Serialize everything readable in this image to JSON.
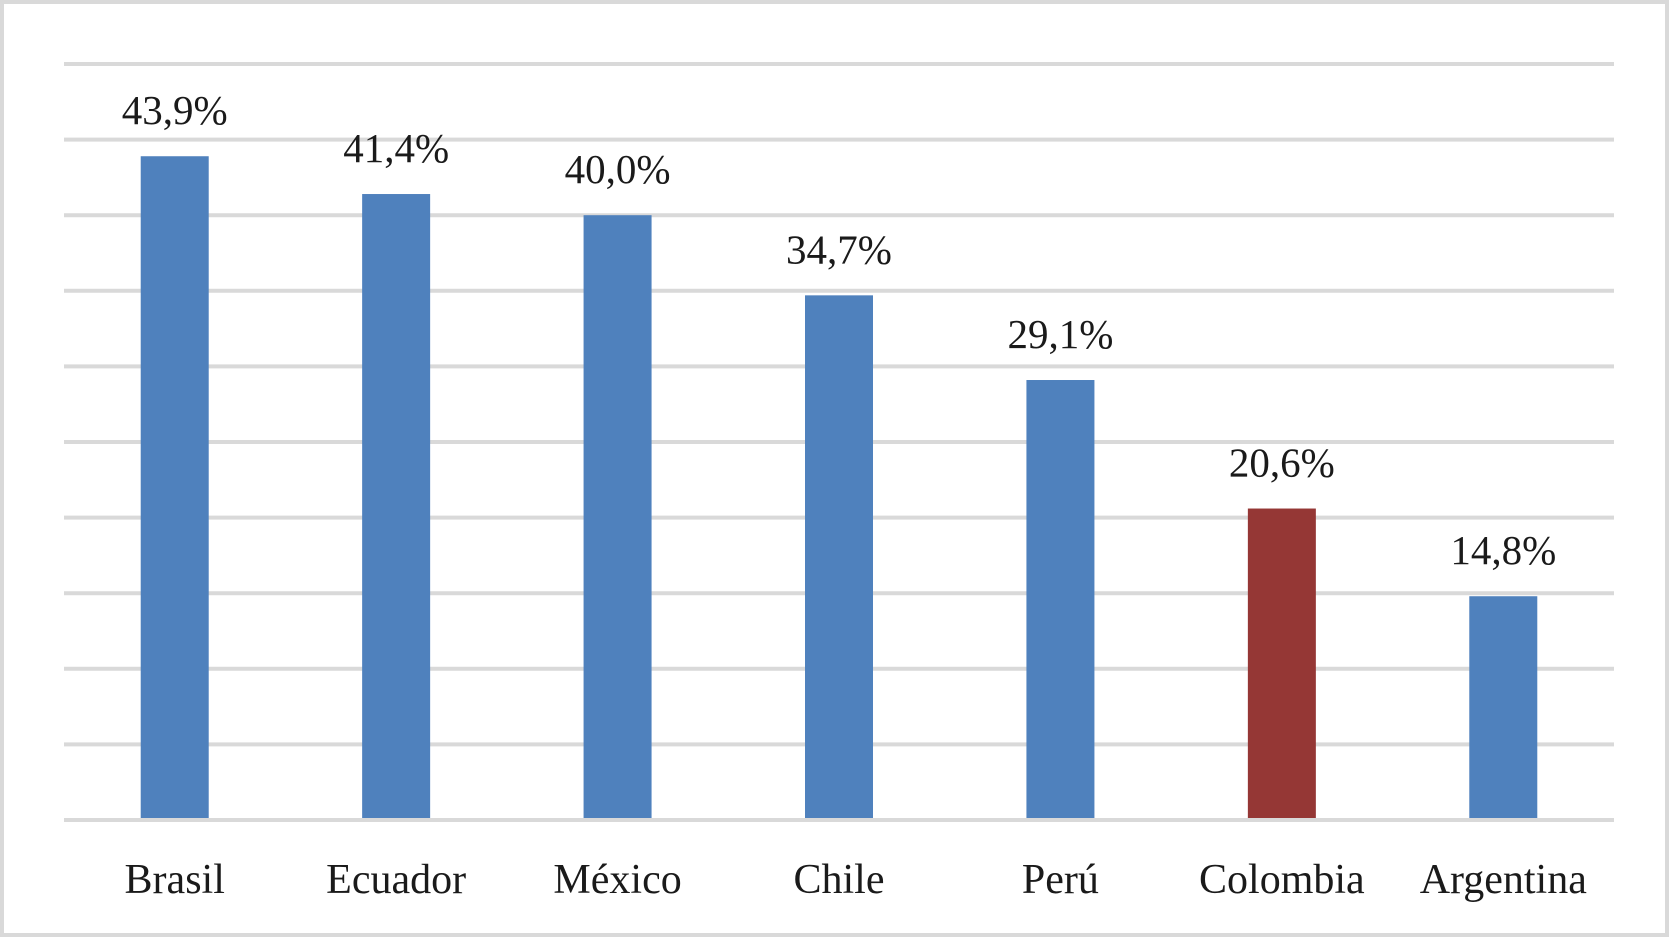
{
  "chart_data": {
    "type": "bar",
    "categories": [
      "Brasil",
      "Ecuador",
      "México",
      "Chile",
      "Perú",
      "Colombia",
      "Argentina"
    ],
    "values": [
      43.9,
      41.4,
      40.0,
      34.7,
      29.1,
      20.6,
      14.8
    ],
    "value_labels": [
      "43,9%",
      "41,4%",
      "40,0%",
      "34,7%",
      "29,1%",
      "20,6%",
      "14,8%"
    ],
    "bar_colors": [
      "#4f81bd",
      "#4f81bd",
      "#4f81bd",
      "#4f81bd",
      "#4f81bd",
      "#953735",
      "#4f81bd"
    ],
    "ylim": [
      0,
      50
    ],
    "gridline_step": 5,
    "grid": true,
    "legend": "none",
    "title": "",
    "xlabel": "",
    "ylabel": ""
  }
}
